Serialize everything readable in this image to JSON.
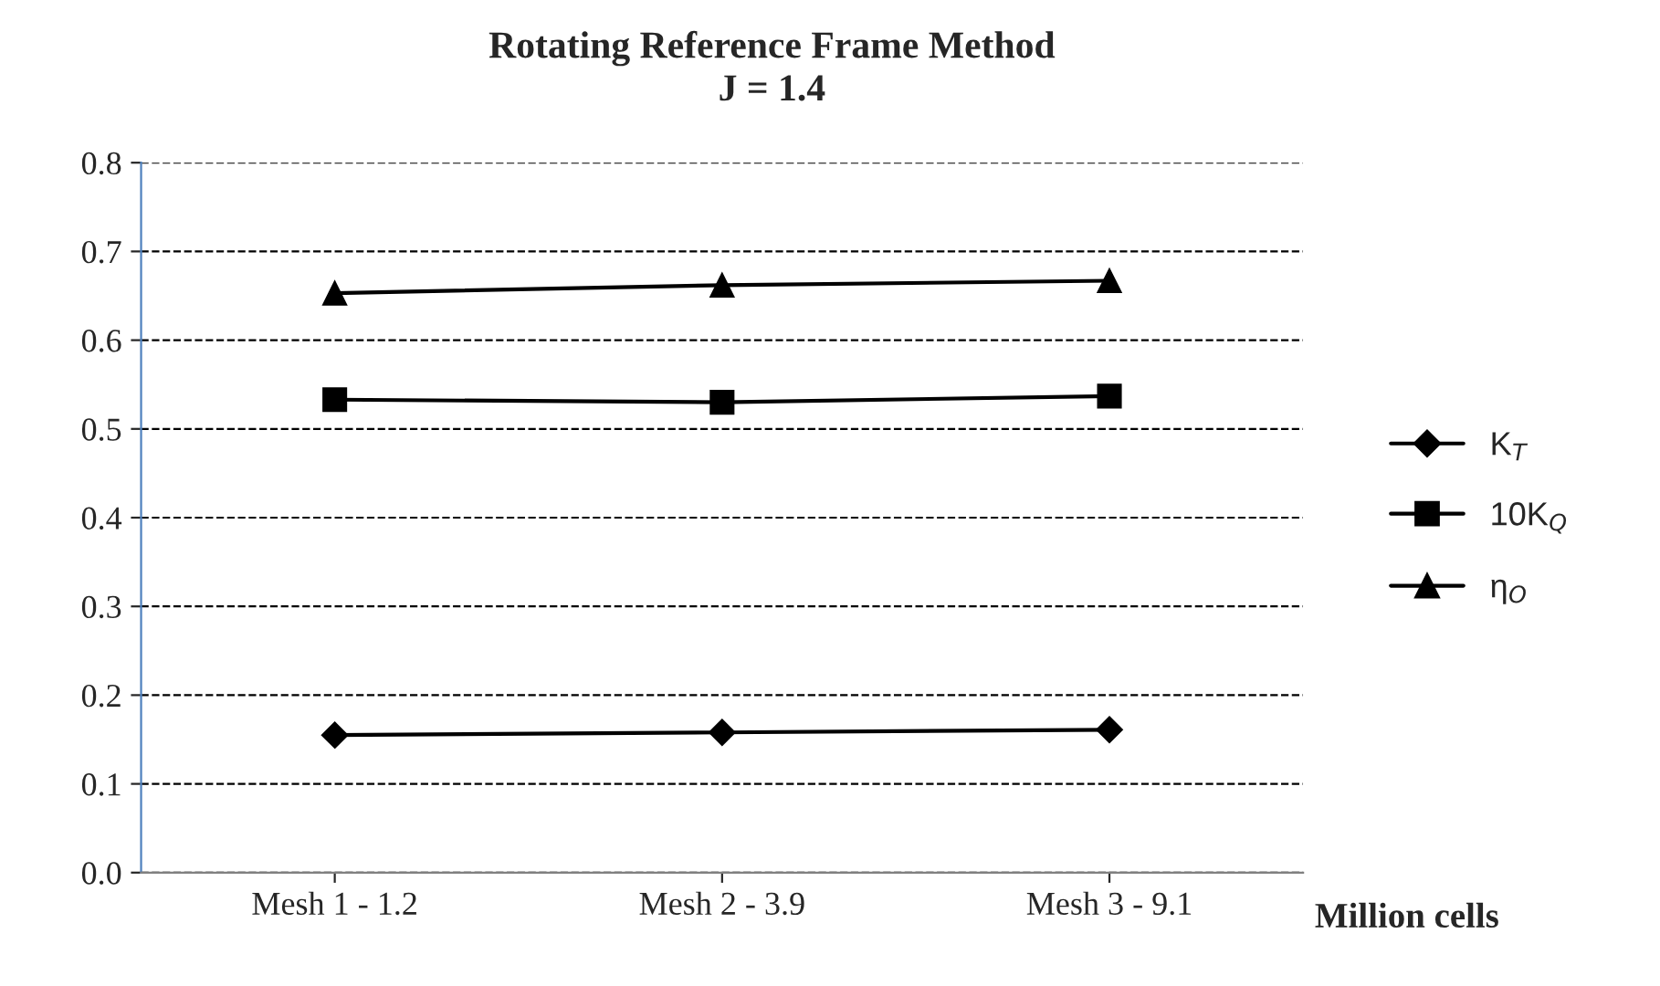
{
  "chart_data": {
    "type": "line",
    "title": "Rotating Reference Frame Method\nJ = 1.4",
    "xlabel": "Million cells",
    "categories": [
      "Mesh 1 - 1.2",
      "Mesh 2 - 3.9",
      "Mesh 3 - 9.1"
    ],
    "series": [
      {
        "name": "K$_{T}$",
        "color": "#000000",
        "marker": "diamond",
        "values": [
          0.155,
          0.158,
          0.161
        ]
      },
      {
        "name": "10K$_{Q}$",
        "color": "#000000",
        "marker": "square",
        "values": [
          0.533,
          0.53,
          0.537
        ]
      },
      {
        "name": "η$_{O}$",
        "color": "#000000",
        "marker": "triangle",
        "values": [
          0.653,
          0.662,
          0.667
        ]
      }
    ],
    "ylim": [
      0,
      0.8
    ],
    "yticks": [
      {
        "value": 0,
        "label": "0.0"
      },
      0.1,
      0.2,
      0.3,
      0.4,
      0.5,
      0.6,
      0.7,
      0.8
    ],
    "grid": "y",
    "legend": "right",
    "line_style": "solid"
  }
}
